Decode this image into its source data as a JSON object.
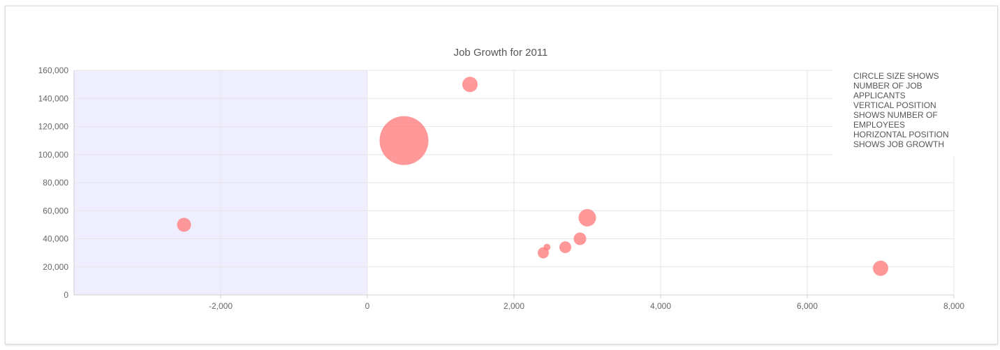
{
  "colors": {
    "bubble": "#ff7f7f",
    "shade": "#eeeefe",
    "grid": "#e6e6e6",
    "axis": "#d0d0d0"
  },
  "chart_data": {
    "type": "scatter",
    "title": "Job Growth for 2011",
    "xlabel": "",
    "ylabel": "",
    "xlim": [
      -4000,
      8000
    ],
    "ylim": [
      0,
      160000
    ],
    "x_ticks": [
      -2000,
      0,
      2000,
      4000,
      6000,
      8000
    ],
    "x_tick_labels": [
      "-2,000",
      "0",
      "2,000",
      "4,000",
      "6,000",
      "8,000"
    ],
    "y_ticks": [
      0,
      20000,
      40000,
      60000,
      80000,
      100000,
      120000,
      140000,
      160000
    ],
    "y_tick_labels": [
      "0",
      "20,000",
      "40,000",
      "60,000",
      "80,000",
      "100,000",
      "120,000",
      "140,000",
      "160,000"
    ],
    "shaded_x_range": [
      -4000,
      0
    ],
    "grid": true,
    "legend_position": "top-right",
    "legend_lines": [
      "CIRCLE SIZE SHOWS",
      "NUMBER OF JOB",
      "APPLICANTS",
      "VERTICAL POSITION",
      "SHOWS NUMBER OF",
      "EMPLOYEES",
      "HORIZONTAL POSITION",
      "SHOWS JOB GROWTH"
    ],
    "points": [
      {
        "x": -2500,
        "y": 50000,
        "size": 1.0
      },
      {
        "x": 500,
        "y": 110000,
        "size": 3.5
      },
      {
        "x": 1400,
        "y": 150000,
        "size": 1.1
      },
      {
        "x": 2400,
        "y": 30000,
        "size": 0.8
      },
      {
        "x": 2450,
        "y": 34000,
        "size": 0.5
      },
      {
        "x": 2700,
        "y": 34000,
        "size": 0.85
      },
      {
        "x": 2900,
        "y": 40000,
        "size": 0.9
      },
      {
        "x": 3000,
        "y": 55000,
        "size": 1.25
      },
      {
        "x": 7000,
        "y": 19000,
        "size": 1.1
      }
    ]
  }
}
